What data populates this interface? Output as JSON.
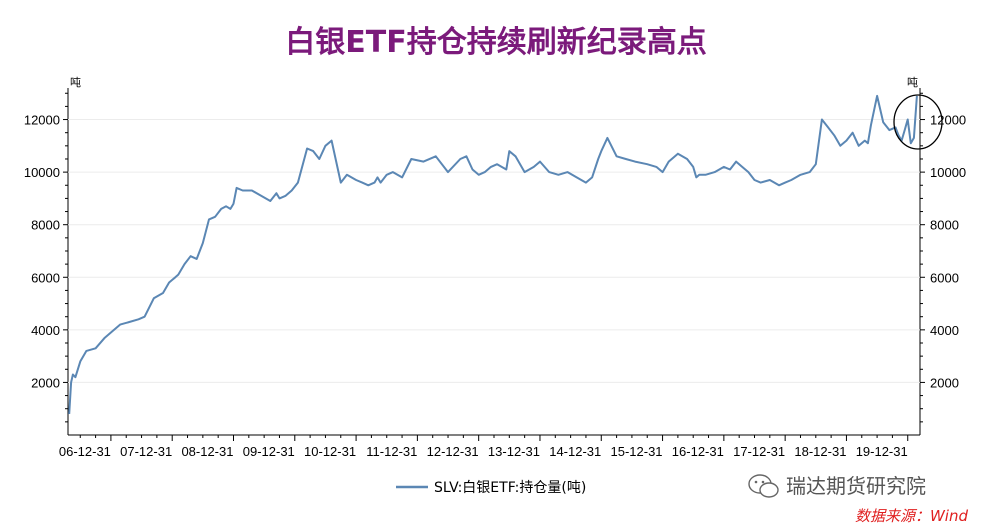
{
  "title": "白银ETF持仓持续刷新纪录高点",
  "unit_left": "吨",
  "unit_right": "吨",
  "watermark": "瑞达期货研究院",
  "source": "数据来源：Wind",
  "colors": {
    "title": "#7b1a7b",
    "series": "#5b87b4",
    "source": "#e02020"
  },
  "chart_data": {
    "type": "line",
    "title": "白银ETF持仓持续刷新纪录高点",
    "xlabel": "",
    "ylabel": "吨",
    "ylim": [
      0,
      13200
    ],
    "yticks": [
      2000,
      4000,
      6000,
      8000,
      10000,
      12000
    ],
    "grid": true,
    "legend": "bottom",
    "xlim": [
      2006.3,
      2020.2
    ],
    "x_tick_labels": [
      "06-12-31",
      "07-12-31",
      "08-12-31",
      "09-12-31",
      "10-12-31",
      "11-12-31",
      "12-12-31",
      "13-12-31",
      "14-12-31",
      "15-12-31",
      "16-12-31",
      "17-12-31",
      "18-12-31",
      "19-12-31"
    ],
    "x_tick_positions": [
      2007,
      2008,
      2009,
      2010,
      2011,
      2012,
      2013,
      2014,
      2015,
      2016,
      2017,
      2018,
      2019,
      2020
    ],
    "series": [
      {
        "name": "SLV:白银ETF:持仓量(吨)",
        "x": [
          2006.32,
          2006.35,
          2006.38,
          2006.42,
          2006.5,
          2006.6,
          2006.75,
          2006.9,
          2007.0,
          2007.15,
          2007.3,
          2007.45,
          2007.55,
          2007.7,
          2007.85,
          2007.95,
          2008.0,
          2008.05,
          2008.1,
          2008.2,
          2008.3,
          2008.4,
          2008.5,
          2008.6,
          2008.7,
          2008.8,
          2008.88,
          2008.95,
          2009.0,
          2009.05,
          2009.15,
          2009.3,
          2009.45,
          2009.6,
          2009.7,
          2009.75,
          2009.85,
          2009.95,
          2010.05,
          2010.2,
          2010.3,
          2010.4,
          2010.5,
          2010.6,
          2010.75,
          2010.85,
          2011.0,
          2011.1,
          2011.2,
          2011.3,
          2011.35,
          2011.4,
          2011.5,
          2011.6,
          2011.75,
          2011.9,
          2012.1,
          2012.3,
          2012.5,
          2012.7,
          2012.8,
          2012.9,
          2013.0,
          2013.1,
          2013.2,
          2013.3,
          2013.45,
          2013.5,
          2013.6,
          2013.75,
          2013.9,
          2014.0,
          2014.15,
          2014.3,
          2014.45,
          2014.6,
          2014.75,
          2014.85,
          2014.95,
          2015.0,
          2015.1,
          2015.25,
          2015.4,
          2015.55,
          2015.75,
          2015.9,
          2016.0,
          2016.1,
          2016.25,
          2016.4,
          2016.5,
          2016.55,
          2016.6,
          2016.7,
          2016.85,
          2017.0,
          2017.1,
          2017.2,
          2017.3,
          2017.4,
          2017.5,
          2017.6,
          2017.75,
          2017.9,
          2018.0,
          2018.1,
          2018.25,
          2018.4,
          2018.5,
          2018.6,
          2018.7,
          2018.8,
          2018.9,
          2019.0,
          2019.1,
          2019.2,
          2019.3,
          2019.35,
          2019.4,
          2019.5,
          2019.6,
          2019.7,
          2019.8,
          2019.85,
          2019.9,
          2019.95,
          2020.0,
          2020.05,
          2020.1,
          2020.15
        ],
        "y": [
          800,
          2000,
          2300,
          2200,
          2800,
          3200,
          3300,
          3700,
          3900,
          4200,
          4300,
          4400,
          4500,
          5200,
          5400,
          5800,
          5900,
          6000,
          6100,
          6500,
          6800,
          6700,
          7300,
          8200,
          8300,
          8600,
          8700,
          8600,
          8800,
          9400,
          9300,
          9300,
          9100,
          8900,
          9200,
          9000,
          9100,
          9300,
          9600,
          10900,
          10800,
          10500,
          11000,
          11200,
          9600,
          9900,
          9700,
          9600,
          9500,
          9600,
          9800,
          9600,
          9900,
          10000,
          9800,
          10500,
          10400,
          10600,
          10000,
          10500,
          10600,
          10100,
          9900,
          10000,
          10200,
          10300,
          10100,
          10800,
          10600,
          10000,
          10200,
          10400,
          10000,
          9900,
          10000,
          9800,
          9600,
          9800,
          10500,
          10800,
          11300,
          10600,
          10500,
          10400,
          10300,
          10200,
          10000,
          10400,
          10700,
          10500,
          10200,
          9800,
          9900,
          9900,
          10000,
          10200,
          10100,
          10400,
          10200,
          10000,
          9700,
          9600,
          9700,
          9500,
          9600,
          9700,
          9900,
          10000,
          10300,
          12000,
          11700,
          11400,
          11000,
          11200,
          11500,
          11000,
          11200,
          11100,
          11800,
          12900,
          11900,
          11600,
          11700,
          11400,
          11200,
          11600,
          12000,
          11100,
          11300,
          12900
        ]
      }
    ]
  }
}
